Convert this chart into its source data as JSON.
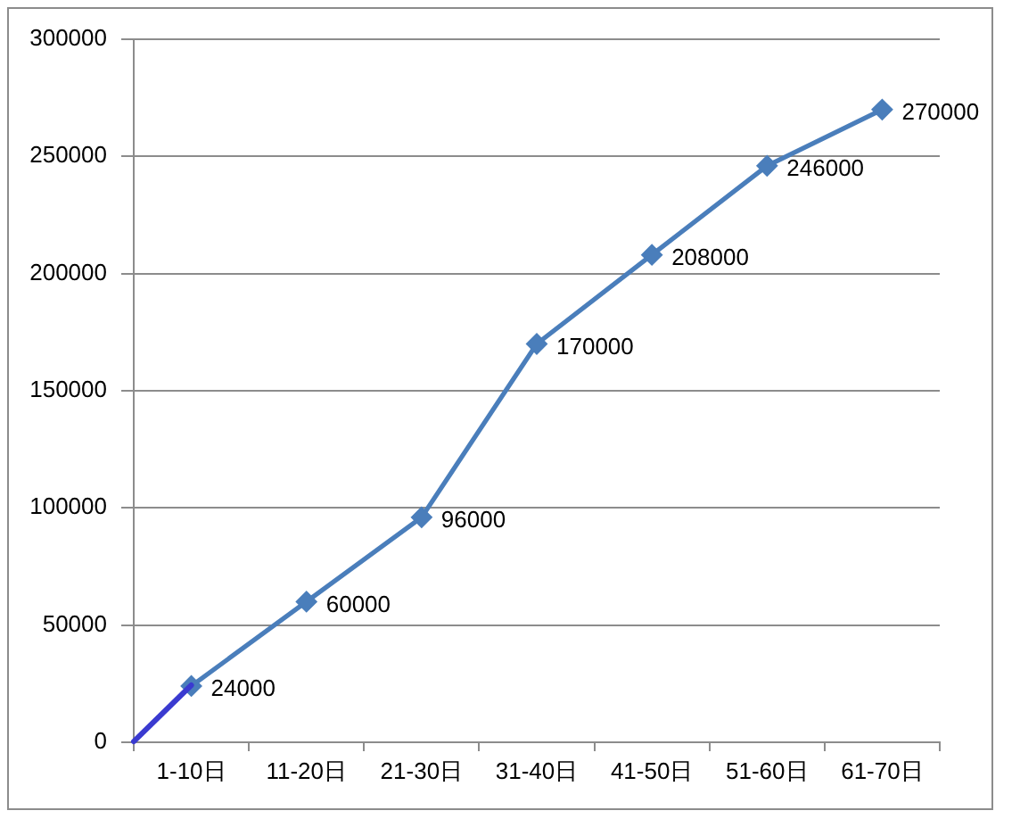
{
  "chart_data": {
    "type": "line",
    "categories": [
      "1-10日",
      "11-20日",
      "21-30日",
      "31-40日",
      "41-50日",
      "51-60日",
      "61-70日"
    ],
    "series": [
      {
        "color": "#4a7ebb",
        "values": [
          24000,
          60000,
          96000,
          170000,
          208000,
          246000,
          270000
        ]
      }
    ],
    "ylim": [
      0,
      300000
    ],
    "yticks": [
      0,
      50000,
      100000,
      150000,
      200000,
      250000,
      300000
    ],
    "grid": "y",
    "marker": "diamond",
    "data_labels": true
  }
}
